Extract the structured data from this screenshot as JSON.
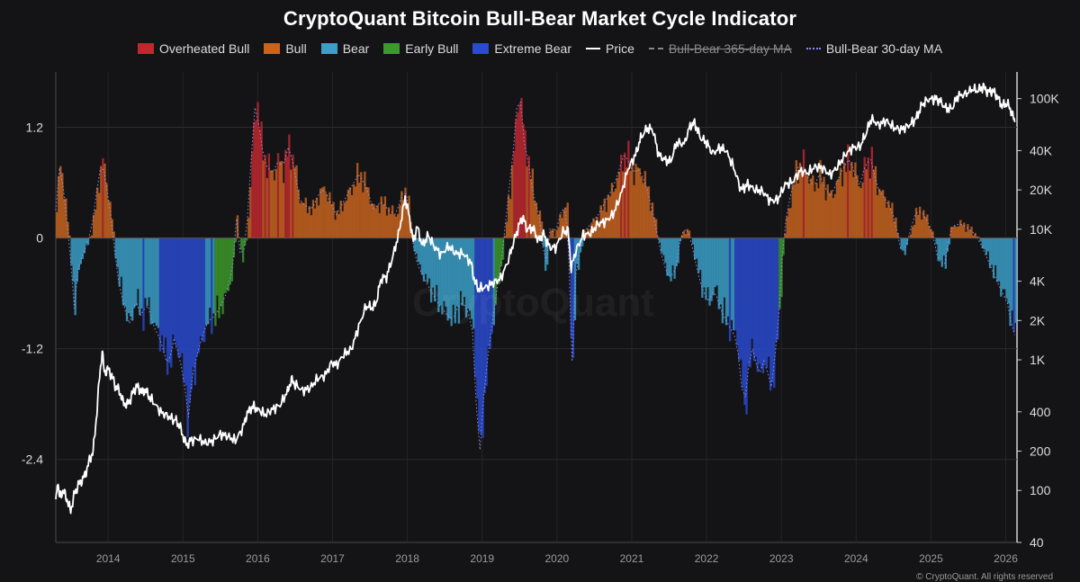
{
  "chart_data": {
    "type": "area",
    "title": "CryptoQuant Bitcoin Bull-Bear Market Cycle Indicator",
    "legend": [
      {
        "name": "Overheated Bull",
        "color": "#c0282e",
        "kind": "area"
      },
      {
        "name": "Bull",
        "color": "#c8641e",
        "kind": "area"
      },
      {
        "name": "Bear",
        "color": "#3aa0c8",
        "kind": "area"
      },
      {
        "name": "Early Bull",
        "color": "#3c9a28",
        "kind": "area"
      },
      {
        "name": "Extreme Bear",
        "color": "#2a4ad0",
        "kind": "area"
      },
      {
        "name": "Price",
        "color": "#ffffff",
        "kind": "line"
      },
      {
        "name": "Bull-Bear 365-day MA",
        "color": "#888888",
        "kind": "dash",
        "hidden": true
      },
      {
        "name": "Bull-Bear 30-day MA",
        "color": "#8888ff",
        "kind": "dot"
      }
    ],
    "legend_position": "top-center",
    "grid": true,
    "y_left": {
      "ticks": [
        "1.2",
        "0",
        "-1.2",
        "-2.4"
      ],
      "tick_values": [
        1.2,
        0,
        -1.2,
        -2.4
      ],
      "range": [
        -3.3,
        1.8
      ]
    },
    "y_right": {
      "scale": "log",
      "ticks": [
        "100K",
        "40K",
        "20K",
        "10K",
        "4K",
        "2K",
        "1K",
        "400",
        "200",
        "100",
        "40"
      ],
      "tick_values": [
        100000,
        40000,
        20000,
        10000,
        4000,
        2000,
        1000,
        400,
        200,
        100,
        40
      ],
      "range": [
        40,
        160000
      ]
    },
    "x": {
      "ticks": [
        "2014",
        "2015",
        "2016",
        "2017",
        "2018",
        "2019",
        "2020",
        "2021",
        "2022",
        "2023",
        "2024",
        "2025",
        "2026"
      ],
      "range": [
        2013.3,
        2026.15
      ]
    },
    "indicator": [
      [
        2013.3,
        0.3
      ],
      [
        2013.34,
        0.8
      ],
      [
        2013.4,
        0.55
      ],
      [
        2013.46,
        0.1
      ],
      [
        2013.5,
        -0.25
      ],
      [
        2013.55,
        -0.8
      ],
      [
        2013.6,
        -0.3
      ],
      [
        2013.7,
        -0.1
      ],
      [
        2013.78,
        0.1
      ],
      [
        2013.86,
        0.6
      ],
      [
        2013.92,
        0.85
      ],
      [
        2013.98,
        0.55
      ],
      [
        2014.05,
        0.15
      ],
      [
        2014.12,
        -0.4
      ],
      [
        2014.2,
        -0.7
      ],
      [
        2014.28,
        -0.95
      ],
      [
        2014.36,
        -0.65
      ],
      [
        2014.44,
        -0.85
      ],
      [
        2014.52,
        -0.7
      ],
      [
        2014.6,
        -0.95
      ],
      [
        2014.7,
        -1.1
      ],
      [
        2014.8,
        -1.4
      ],
      [
        2014.88,
        -1.1
      ],
      [
        2014.96,
        -1.3
      ],
      [
        2015.03,
        -1.65
      ],
      [
        2015.06,
        -2.15
      ],
      [
        2015.1,
        -1.6
      ],
      [
        2015.18,
        -1.3
      ],
      [
        2015.26,
        -1.05
      ],
      [
        2015.34,
        -0.9
      ],
      [
        2015.42,
        -0.85
      ],
      [
        2015.5,
        -0.75
      ],
      [
        2015.58,
        -0.6
      ],
      [
        2015.66,
        -0.35
      ],
      [
        2015.72,
        0.25
      ],
      [
        2015.78,
        -0.3
      ],
      [
        2015.85,
        0.05
      ],
      [
        2015.9,
        0.7
      ],
      [
        2015.95,
        1.35
      ],
      [
        2015.98,
        1.5
      ],
      [
        2016.03,
        1.1
      ],
      [
        2016.1,
        0.8
      ],
      [
        2016.2,
        0.7
      ],
      [
        2016.28,
        0.85
      ],
      [
        2016.34,
        0.75
      ],
      [
        2016.4,
        1.0
      ],
      [
        2016.48,
        0.8
      ],
      [
        2016.56,
        0.4
      ],
      [
        2016.64,
        0.35
      ],
      [
        2016.72,
        0.3
      ],
      [
        2016.8,
        0.45
      ],
      [
        2016.88,
        0.55
      ],
      [
        2016.96,
        0.4
      ],
      [
        2017.05,
        0.25
      ],
      [
        2017.15,
        0.4
      ],
      [
        2017.25,
        0.55
      ],
      [
        2017.35,
        0.7
      ],
      [
        2017.45,
        0.55
      ],
      [
        2017.55,
        0.3
      ],
      [
        2017.65,
        0.4
      ],
      [
        2017.75,
        0.3
      ],
      [
        2017.85,
        0.25
      ],
      [
        2017.92,
        0.45
      ],
      [
        2017.97,
        0.55
      ],
      [
        2018.02,
        0.3
      ],
      [
        2018.06,
        0.0
      ],
      [
        2018.12,
        -0.25
      ],
      [
        2018.2,
        -0.4
      ],
      [
        2018.3,
        -0.55
      ],
      [
        2018.4,
        -0.7
      ],
      [
        2018.5,
        -0.8
      ],
      [
        2018.6,
        -0.9
      ],
      [
        2018.7,
        -0.7
      ],
      [
        2018.8,
        -0.75
      ],
      [
        2018.88,
        -1.05
      ],
      [
        2018.92,
        -1.8
      ],
      [
        2018.97,
        -2.3
      ],
      [
        2019.03,
        -1.6
      ],
      [
        2019.12,
        -1.0
      ],
      [
        2019.2,
        -0.55
      ],
      [
        2019.28,
        -0.1
      ],
      [
        2019.34,
        0.4
      ],
      [
        2019.4,
        0.8
      ],
      [
        2019.46,
        1.4
      ],
      [
        2019.5,
        1.6
      ],
      [
        2019.55,
        1.1
      ],
      [
        2019.62,
        0.8
      ],
      [
        2019.7,
        0.4
      ],
      [
        2019.78,
        0.2
      ],
      [
        2019.84,
        -0.4
      ],
      [
        2019.9,
        0.1
      ],
      [
        2019.98,
        0.05
      ],
      [
        2020.06,
        0.3
      ],
      [
        2020.14,
        0.35
      ],
      [
        2020.18,
        -1.0
      ],
      [
        2020.2,
        -1.4
      ],
      [
        2020.25,
        -0.4
      ],
      [
        2020.35,
        0.05
      ],
      [
        2020.45,
        0.15
      ],
      [
        2020.55,
        0.25
      ],
      [
        2020.65,
        0.4
      ],
      [
        2020.75,
        0.55
      ],
      [
        2020.82,
        0.7
      ],
      [
        2020.88,
        0.9
      ],
      [
        2020.95,
        0.85
      ],
      [
        2021.02,
        0.7
      ],
      [
        2021.1,
        0.75
      ],
      [
        2021.2,
        0.55
      ],
      [
        2021.3,
        0.2
      ],
      [
        2021.4,
        -0.2
      ],
      [
        2021.5,
        -0.45
      ],
      [
        2021.58,
        -0.35
      ],
      [
        2021.66,
        0.05
      ],
      [
        2021.74,
        0.1
      ],
      [
        2021.8,
        -0.05
      ],
      [
        2021.86,
        -0.3
      ],
      [
        2021.94,
        -0.55
      ],
      [
        2022.02,
        -0.7
      ],
      [
        2022.1,
        -0.55
      ],
      [
        2022.2,
        -0.8
      ],
      [
        2022.3,
        -0.95
      ],
      [
        2022.4,
        -1.1
      ],
      [
        2022.46,
        -1.5
      ],
      [
        2022.5,
        -1.95
      ],
      [
        2022.55,
        -1.4
      ],
      [
        2022.62,
        -1.2
      ],
      [
        2022.7,
        -1.5
      ],
      [
        2022.78,
        -1.3
      ],
      [
        2022.86,
        -1.65
      ],
      [
        2022.92,
        -1.25
      ],
      [
        2022.97,
        -0.8
      ],
      [
        2023.02,
        -0.1
      ],
      [
        2023.06,
        0.2
      ],
      [
        2023.12,
        0.45
      ],
      [
        2023.2,
        0.75
      ],
      [
        2023.28,
        0.8
      ],
      [
        2023.36,
        0.65
      ],
      [
        2023.44,
        0.55
      ],
      [
        2023.5,
        0.7
      ],
      [
        2023.58,
        0.55
      ],
      [
        2023.66,
        0.45
      ],
      [
        2023.74,
        0.6
      ],
      [
        2023.82,
        0.75
      ],
      [
        2023.9,
        0.85
      ],
      [
        2023.96,
        0.75
      ],
      [
        2024.04,
        0.55
      ],
      [
        2024.12,
        0.8
      ],
      [
        2024.2,
        0.85
      ],
      [
        2024.28,
        0.55
      ],
      [
        2024.36,
        0.45
      ],
      [
        2024.44,
        0.35
      ],
      [
        2024.52,
        0.2
      ],
      [
        2024.58,
        -0.1
      ],
      [
        2024.64,
        -0.15
      ],
      [
        2024.7,
        0.0
      ],
      [
        2024.78,
        0.25
      ],
      [
        2024.86,
        0.3
      ],
      [
        2024.94,
        0.2
      ],
      [
        2025.02,
        0.05
      ],
      [
        2025.1,
        -0.25
      ],
      [
        2025.18,
        -0.3
      ],
      [
        2025.26,
        0.1
      ],
      [
        2025.34,
        0.15
      ],
      [
        2025.42,
        0.15
      ],
      [
        2025.5,
        0.1
      ],
      [
        2025.58,
        0.05
      ],
      [
        2025.66,
        -0.05
      ],
      [
        2025.74,
        -0.2
      ],
      [
        2025.82,
        -0.35
      ],
      [
        2025.9,
        -0.5
      ],
      [
        2025.96,
        -0.6
      ],
      [
        2026.02,
        -0.7
      ],
      [
        2026.08,
        -0.95
      ],
      [
        2026.12,
        -1.05
      ]
    ],
    "price": [
      [
        2013.3,
        80
      ],
      [
        2013.32,
        120
      ],
      [
        2013.35,
        90
      ],
      [
        2013.4,
        100
      ],
      [
        2013.45,
        85
      ],
      [
        2013.5,
        70
      ],
      [
        2013.55,
        95
      ],
      [
        2013.6,
        110
      ],
      [
        2013.65,
        120
      ],
      [
        2013.7,
        135
      ],
      [
        2013.75,
        170
      ],
      [
        2013.8,
        200
      ],
      [
        2013.85,
        400
      ],
      [
        2013.88,
        700
      ],
      [
        2013.92,
        1150
      ],
      [
        2013.95,
        800
      ],
      [
        2014.0,
        850
      ],
      [
        2014.05,
        750
      ],
      [
        2014.1,
        620
      ],
      [
        2014.15,
        580
      ],
      [
        2014.2,
        470
      ],
      [
        2014.25,
        450
      ],
      [
        2014.3,
        500
      ],
      [
        2014.35,
        600
      ],
      [
        2014.4,
        620
      ],
      [
        2014.45,
        560
      ],
      [
        2014.5,
        590
      ],
      [
        2014.55,
        520
      ],
      [
        2014.6,
        480
      ],
      [
        2014.7,
        400
      ],
      [
        2014.8,
        370
      ],
      [
        2014.9,
        340
      ],
      [
        2014.95,
        320
      ],
      [
        2015.0,
        260
      ],
      [
        2015.05,
        220
      ],
      [
        2015.1,
        240
      ],
      [
        2015.2,
        250
      ],
      [
        2015.3,
        230
      ],
      [
        2015.4,
        240
      ],
      [
        2015.5,
        270
      ],
      [
        2015.6,
        260
      ],
      [
        2015.7,
        240
      ],
      [
        2015.8,
        300
      ],
      [
        2015.85,
        380
      ],
      [
        2015.9,
        420
      ],
      [
        2015.95,
        440
      ],
      [
        2016.0,
        420
      ],
      [
        2016.1,
        380
      ],
      [
        2016.2,
        420
      ],
      [
        2016.3,
        450
      ],
      [
        2016.4,
        580
      ],
      [
        2016.45,
        700
      ],
      [
        2016.5,
        650
      ],
      [
        2016.6,
        580
      ],
      [
        2016.7,
        610
      ],
      [
        2016.8,
        720
      ],
      [
        2016.9,
        760
      ],
      [
        2017.0,
        980
      ],
      [
        2017.05,
        900
      ],
      [
        2017.15,
        1100
      ],
      [
        2017.25,
        1200
      ],
      [
        2017.35,
        1800
      ],
      [
        2017.45,
        2600
      ],
      [
        2017.52,
        2500
      ],
      [
        2017.58,
        2700
      ],
      [
        2017.65,
        4200
      ],
      [
        2017.72,
        4300
      ],
      [
        2017.8,
        6000
      ],
      [
        2017.88,
        9000
      ],
      [
        2017.95,
        15000
      ],
      [
        2017.97,
        17500
      ],
      [
        2018.02,
        13000
      ],
      [
        2018.08,
        8000
      ],
      [
        2018.13,
        10500
      ],
      [
        2018.2,
        7500
      ],
      [
        2018.28,
        9000
      ],
      [
        2018.35,
        7500
      ],
      [
        2018.45,
        6400
      ],
      [
        2018.55,
        7400
      ],
      [
        2018.65,
        6500
      ],
      [
        2018.75,
        6500
      ],
      [
        2018.85,
        5500
      ],
      [
        2018.9,
        4000
      ],
      [
        2018.95,
        3500
      ],
      [
        2019.05,
        3600
      ],
      [
        2019.15,
        3900
      ],
      [
        2019.25,
        4200
      ],
      [
        2019.35,
        5800
      ],
      [
        2019.42,
        8000
      ],
      [
        2019.5,
        11000
      ],
      [
        2019.54,
        12500
      ],
      [
        2019.6,
        10000
      ],
      [
        2019.68,
        10200
      ],
      [
        2019.75,
        8200
      ],
      [
        2019.82,
        9200
      ],
      [
        2019.9,
        7300
      ],
      [
        2019.98,
        7200
      ],
      [
        2020.08,
        9500
      ],
      [
        2020.15,
        9800
      ],
      [
        2020.19,
        5000
      ],
      [
        2020.25,
        6800
      ],
      [
        2020.35,
        9000
      ],
      [
        2020.45,
        9300
      ],
      [
        2020.55,
        11000
      ],
      [
        2020.65,
        11500
      ],
      [
        2020.75,
        13000
      ],
      [
        2020.85,
        18000
      ],
      [
        2020.95,
        29000
      ],
      [
        2021.05,
        37000
      ],
      [
        2021.12,
        50000
      ],
      [
        2021.2,
        59000
      ],
      [
        2021.28,
        58000
      ],
      [
        2021.36,
        37000
      ],
      [
        2021.44,
        34000
      ],
      [
        2021.52,
        33000
      ],
      [
        2021.6,
        46000
      ],
      [
        2021.7,
        45000
      ],
      [
        2021.78,
        62000
      ],
      [
        2021.84,
        65000
      ],
      [
        2021.92,
        50000
      ],
      [
        2022.0,
        46000
      ],
      [
        2022.08,
        38000
      ],
      [
        2022.18,
        42000
      ],
      [
        2022.26,
        40000
      ],
      [
        2022.36,
        30000
      ],
      [
        2022.46,
        20000
      ],
      [
        2022.55,
        22000
      ],
      [
        2022.65,
        20000
      ],
      [
        2022.75,
        19500
      ],
      [
        2022.85,
        16500
      ],
      [
        2022.95,
        16800
      ],
      [
        2023.05,
        22000
      ],
      [
        2023.15,
        23000
      ],
      [
        2023.25,
        28000
      ],
      [
        2023.35,
        27000
      ],
      [
        2023.45,
        30000
      ],
      [
        2023.55,
        29500
      ],
      [
        2023.65,
        26000
      ],
      [
        2023.75,
        30000
      ],
      [
        2023.85,
        37000
      ],
      [
        2023.95,
        42000
      ],
      [
        2024.05,
        43000
      ],
      [
        2024.12,
        52000
      ],
      [
        2024.2,
        70000
      ],
      [
        2024.3,
        63000
      ],
      [
        2024.4,
        68000
      ],
      [
        2024.5,
        60000
      ],
      [
        2024.6,
        58000
      ],
      [
        2024.7,
        62000
      ],
      [
        2024.8,
        70000
      ],
      [
        2024.88,
        90000
      ],
      [
        2024.95,
        98000
      ],
      [
        2025.05,
        100000
      ],
      [
        2025.12,
        96000
      ],
      [
        2025.2,
        84000
      ],
      [
        2025.28,
        84000
      ],
      [
        2025.36,
        105000
      ],
      [
        2025.46,
        108000
      ],
      [
        2025.55,
        118000
      ],
      [
        2025.62,
        115000
      ],
      [
        2025.7,
        123000
      ],
      [
        2025.76,
        112000
      ],
      [
        2025.82,
        115000
      ],
      [
        2025.88,
        105000
      ],
      [
        2025.95,
        88000
      ],
      [
        2026.02,
        92000
      ],
      [
        2026.08,
        78000
      ],
      [
        2026.12,
        66000
      ]
    ],
    "x_ticks_missing": []
  },
  "watermark": "CryptoQuant",
  "copyright": "© CryptoQuant. All rights reserved"
}
